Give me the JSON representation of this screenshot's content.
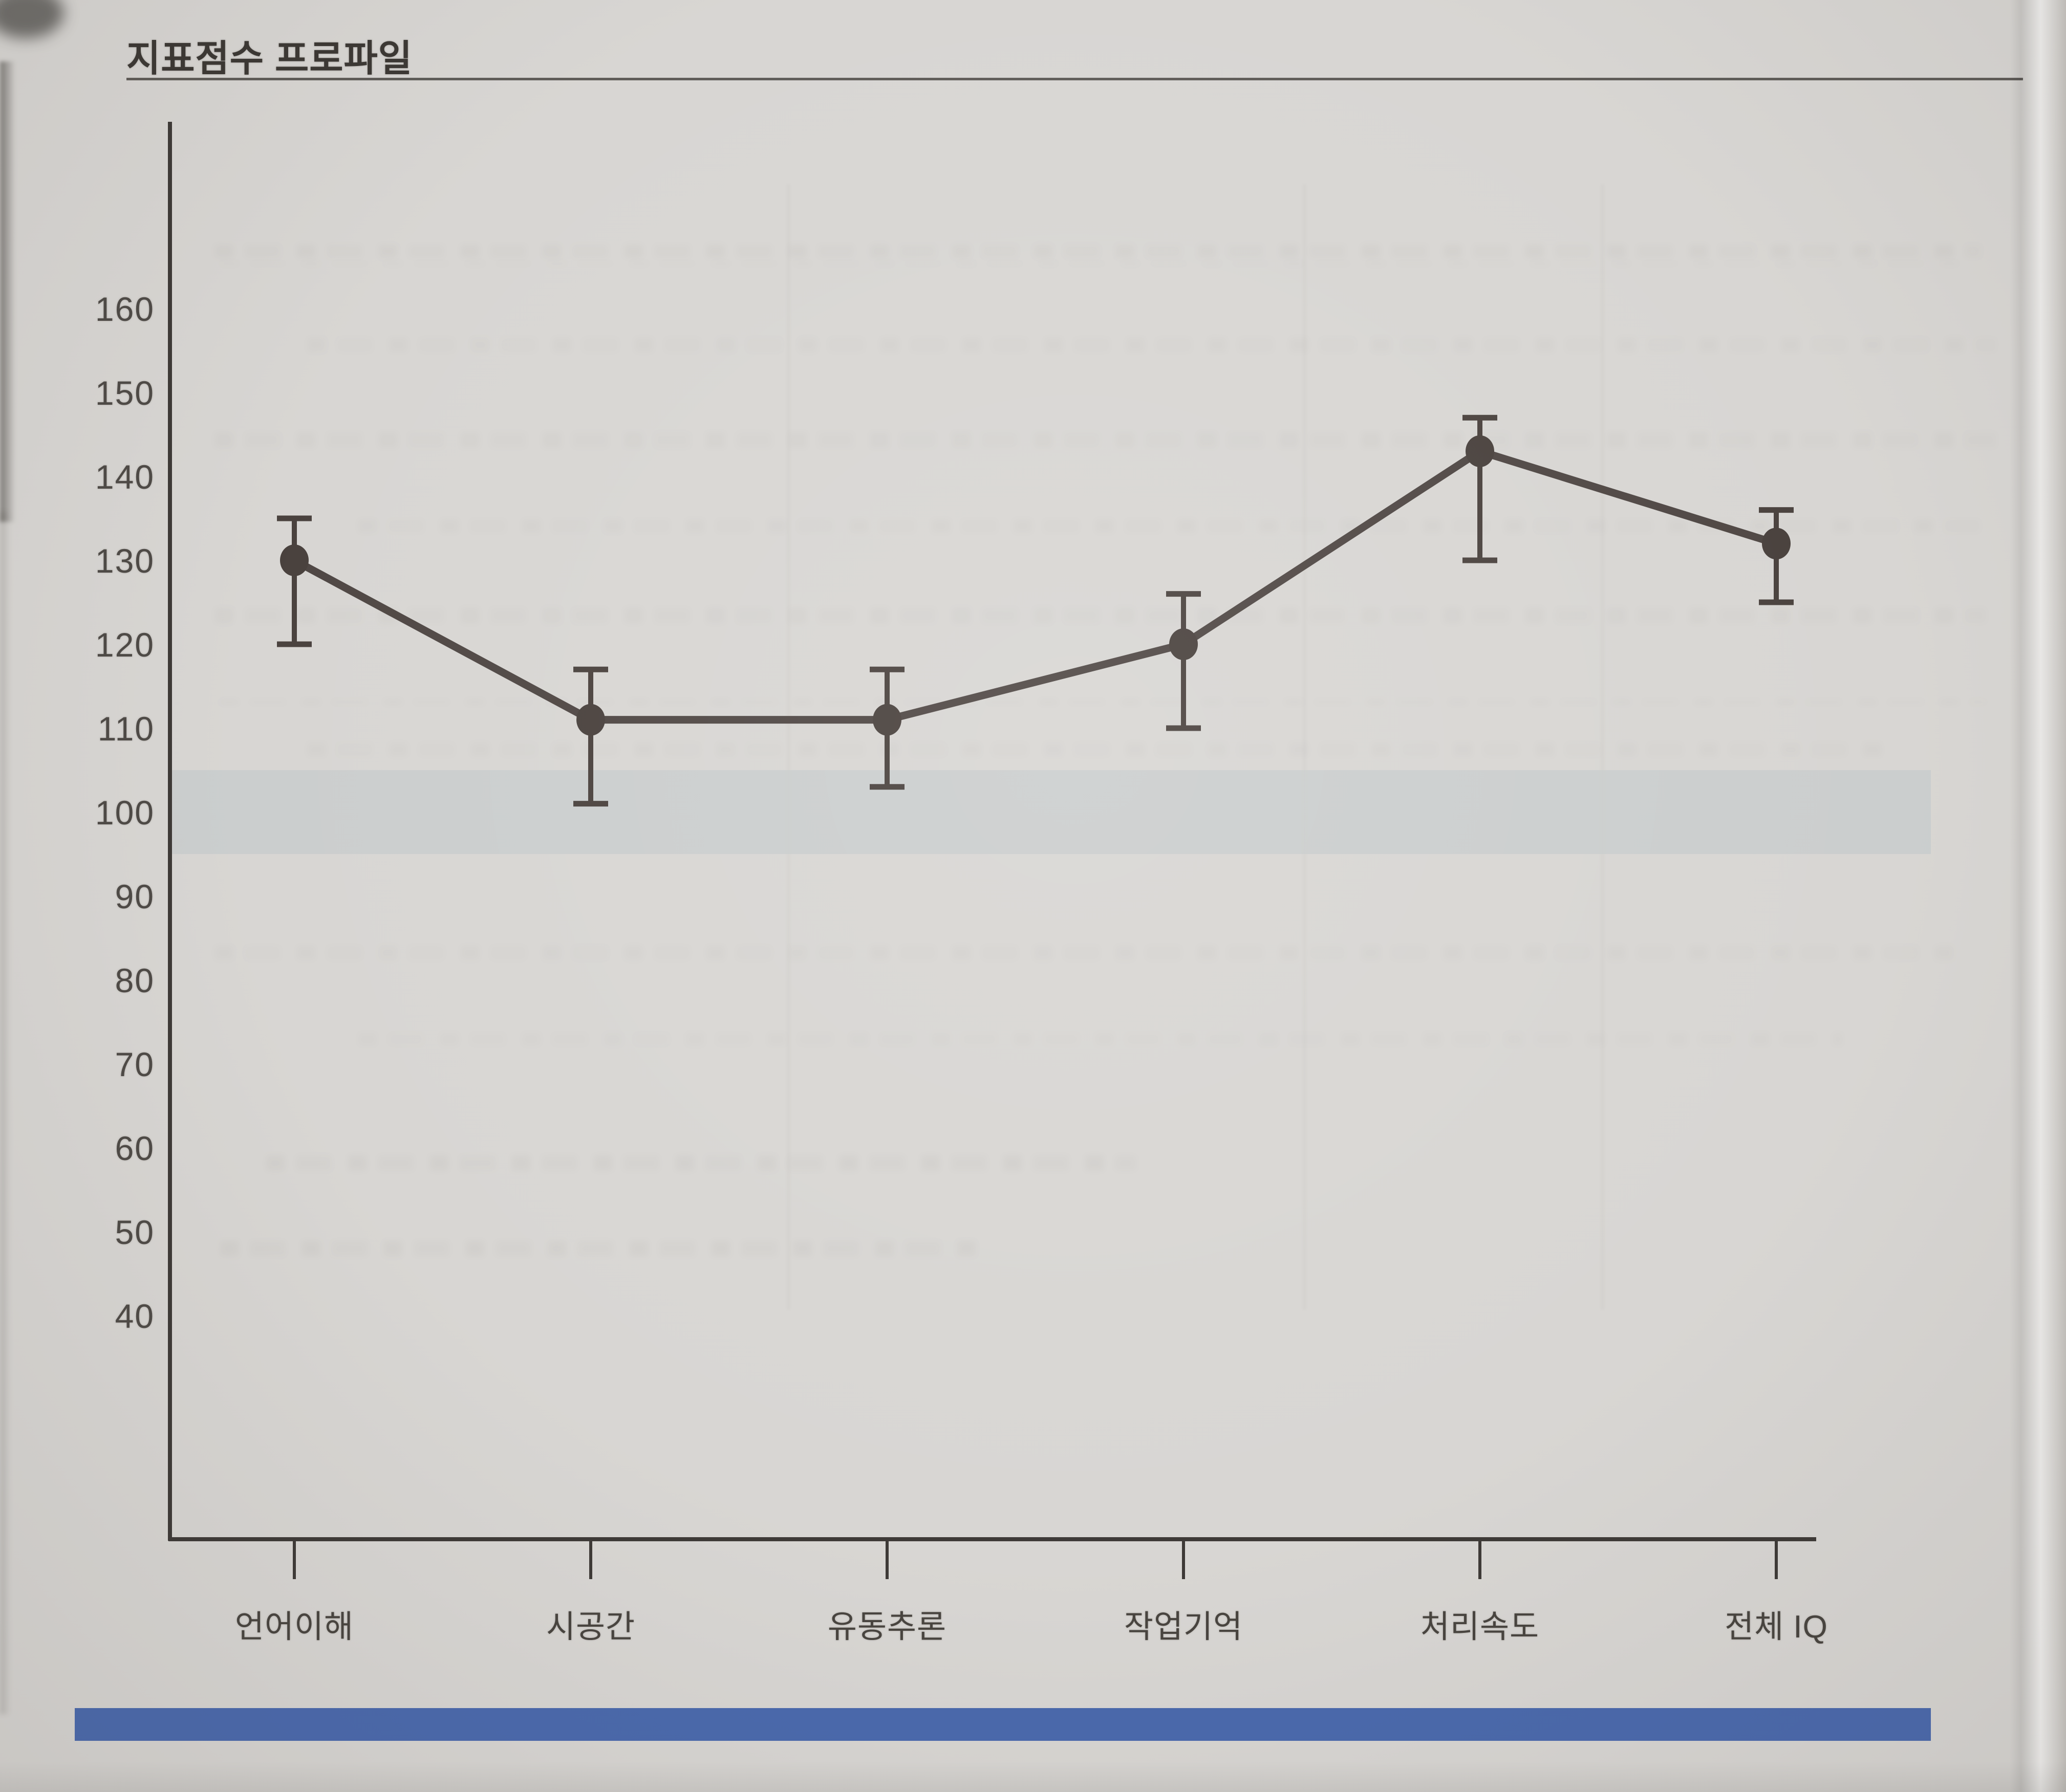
{
  "header": {
    "title": "지표점수 프로파일"
  },
  "chart_data": {
    "type": "line",
    "title": "지표점수 프로파일",
    "categories": [
      "언어이해",
      "시공간",
      "유동추론",
      "작업기억",
      "처리속도",
      "전체 IQ"
    ],
    "series": [
      {
        "name": "지표점수",
        "values": [
          130,
          111,
          111,
          120,
          143,
          132
        ]
      }
    ],
    "error_bars": {
      "upper": [
        135,
        117,
        117,
        126,
        147,
        136
      ],
      "lower": [
        120,
        101,
        103,
        110,
        130,
        125
      ]
    },
    "y_ticks": [
      160,
      150,
      140,
      130,
      120,
      110,
      100,
      90,
      80,
      70,
      60,
      50,
      40
    ],
    "ylim": [
      40,
      160
    ],
    "xlabel": "",
    "ylabel": "",
    "grid": false,
    "legend": false,
    "marker": "filled-circle",
    "average_band": {
      "low": 95,
      "high": 105
    },
    "colors": {
      "line": "#49413d",
      "marker": "#49413d",
      "error_bar": "#4a423e",
      "axis": "#3e3a37",
      "band": "#c9cccc",
      "label_text": "#4e4a46",
      "accent_bar": "#4a69ad",
      "page_background": "#d8d6d3"
    }
  },
  "footer": {
    "accent_bar": ""
  }
}
